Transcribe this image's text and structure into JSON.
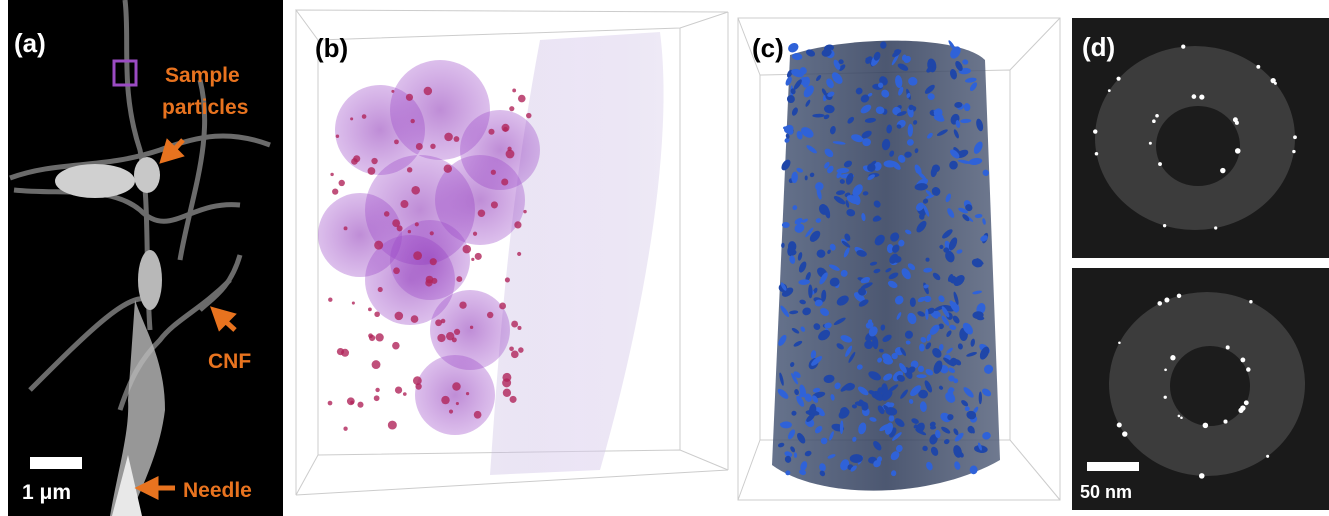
{
  "panels": [
    {
      "label": "(a)",
      "annotations": {
        "sample": [
          "Sample",
          "particles"
        ],
        "cnf": "CNF",
        "needle": "Needle"
      },
      "scale_bar": "1 μm"
    },
    {
      "label": "(b)"
    },
    {
      "label": "(c)"
    },
    {
      "label": "(d)",
      "scale_bar": "50 nm"
    }
  ]
}
